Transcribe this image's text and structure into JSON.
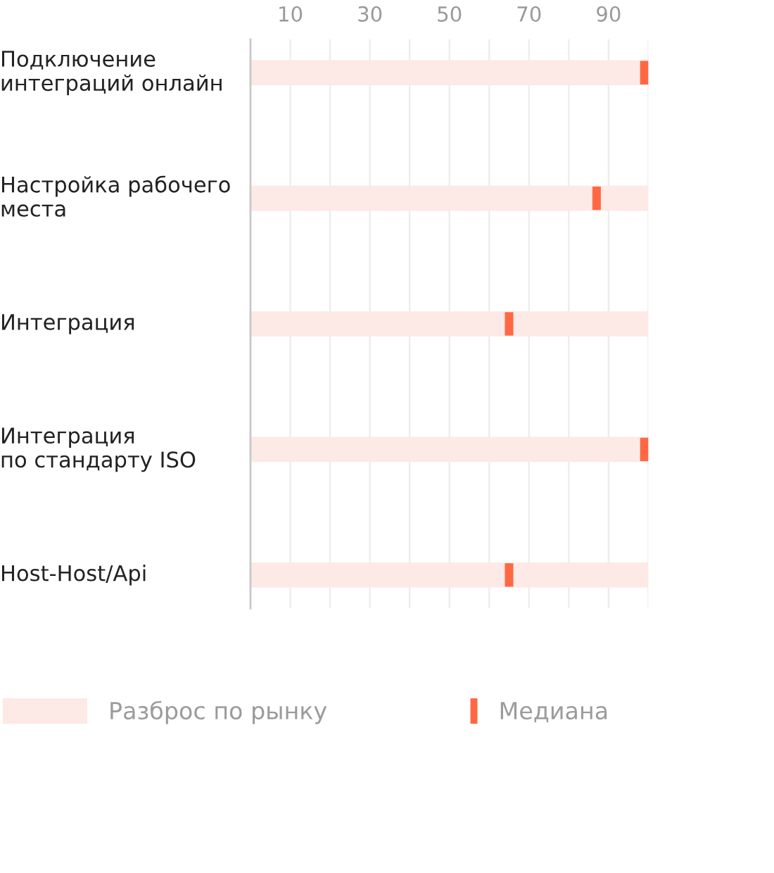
{
  "chart_data": {
    "type": "bar",
    "orientation": "horizontal",
    "categories": [
      "Подключение\nинтеграций онлайн",
      "Настройка рабочего\nместа",
      "Интеграция",
      "Интеграция\nпо стандарту ISO",
      "Host-Host/Api"
    ],
    "series": [
      {
        "name": "Разброс по рынку",
        "color": "#fde9e5",
        "values": [
          100,
          100,
          100,
          100,
          100
        ]
      },
      {
        "name": "Медиана",
        "type": "scatter",
        "marker": "cross",
        "color": "#ff6843",
        "values": [
          99,
          87,
          65,
          99,
          65
        ]
      }
    ],
    "xlim": [
      0,
      100
    ],
    "xticks": [
      10,
      {
        "value": 20,
        "label": null
      },
      30,
      {
        "value": 40,
        "label": null
      },
      50,
      {
        "value": 60,
        "label": null
      },
      70,
      {
        "value": 80,
        "label": null
      },
      90,
      {
        "value": 100,
        "label": null
      }
    ],
    "grid": "x",
    "legend": "bottom"
  }
}
